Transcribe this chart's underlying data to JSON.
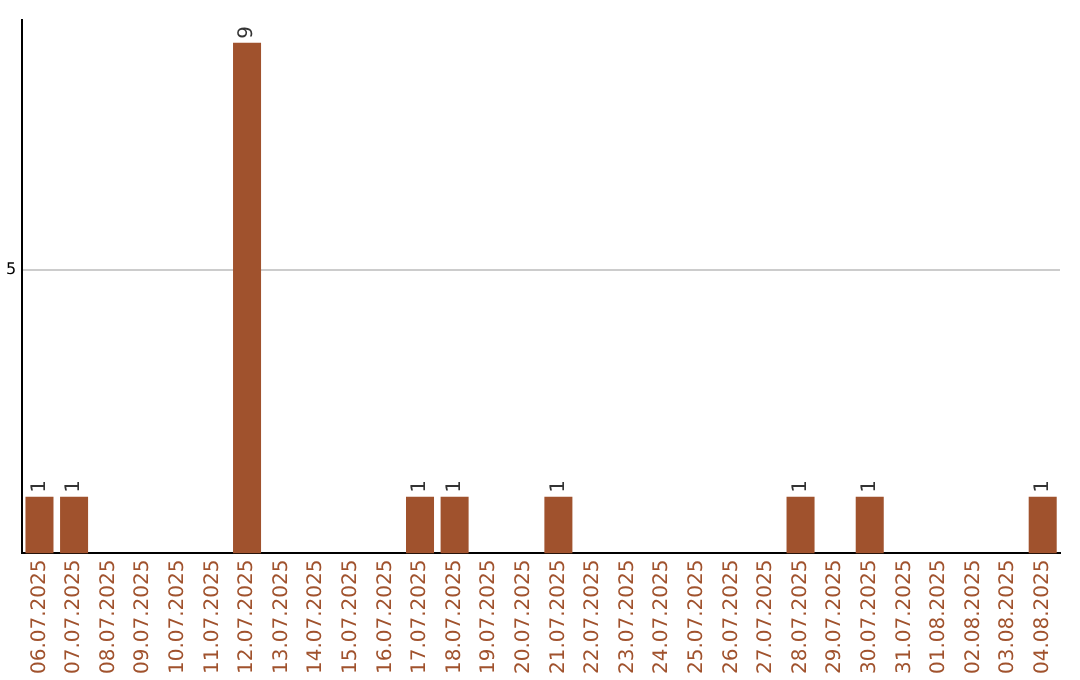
{
  "chart_data": {
    "type": "bar",
    "categories": [
      "06.07.2025",
      "07.07.2025",
      "08.07.2025",
      "09.07.2025",
      "10.07.2025",
      "11.07.2025",
      "12.07.2025",
      "13.07.2025",
      "14.07.2025",
      "15.07.2025",
      "16.07.2025",
      "17.07.2025",
      "18.07.2025",
      "19.07.2025",
      "20.07.2025",
      "21.07.2025",
      "22.07.2025",
      "23.07.2025",
      "24.07.2025",
      "25.07.2025",
      "26.07.2025",
      "27.07.2025",
      "28.07.2025",
      "29.07.2025",
      "30.07.2025",
      "31.07.2025",
      "01.08.2025",
      "02.08.2025",
      "03.08.2025",
      "04.08.2025"
    ],
    "values": [
      1,
      1,
      0,
      0,
      0,
      0,
      9,
      0,
      0,
      0,
      0,
      1,
      1,
      0,
      0,
      1,
      0,
      0,
      0,
      0,
      0,
      0,
      1,
      0,
      1,
      0,
      0,
      0,
      0,
      1
    ],
    "value_labels": [
      "1",
      "1",
      null,
      null,
      null,
      null,
      "9",
      null,
      null,
      null,
      null,
      "1",
      "1",
      null,
      null,
      "1",
      null,
      null,
      null,
      null,
      null,
      null,
      "1",
      null,
      "1",
      null,
      null,
      null,
      null,
      "1"
    ],
    "color": "#a0522d",
    "ylim": [
      0,
      9.4
    ],
    "yticks": [
      5
    ],
    "grid": "y",
    "legend": false
  }
}
